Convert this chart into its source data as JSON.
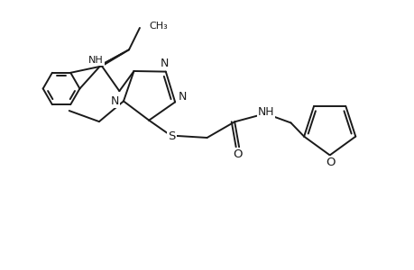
{
  "background_color": "#ffffff",
  "line_color": "#1a1a1a",
  "line_width": 1.4,
  "figsize": [
    4.6,
    3.0
  ],
  "dpi": 100,
  "xlim": [
    0,
    9.2
  ],
  "ylim": [
    0,
    6.0
  ]
}
